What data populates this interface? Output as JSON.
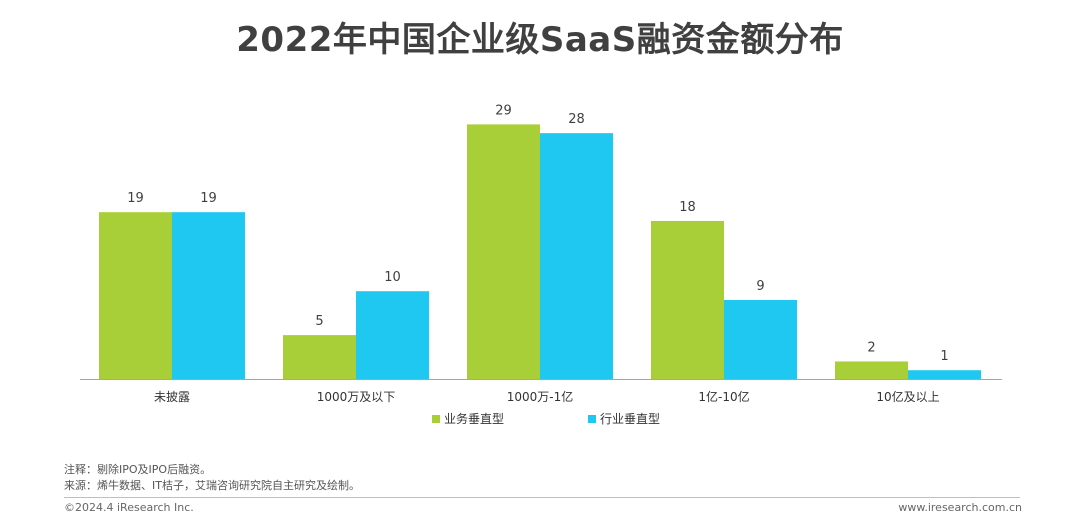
{
  "title": "2022年中国企业级SaaS融资金额分布",
  "chart_data": {
    "type": "bar",
    "title": "2022年中国企业级SaaS融资金额分布",
    "categories": [
      "未披露",
      "1000万及以下",
      "1000万-1亿",
      "1亿-10亿",
      "10亿及以上"
    ],
    "series": [
      {
        "name": "业务垂直型",
        "values": [
          19,
          5,
          29,
          18,
          2
        ],
        "color": "#a9cf38"
      },
      {
        "name": "行业垂直型",
        "values": [
          19,
          10,
          28,
          9,
          1
        ],
        "color": "#1ec8f0"
      }
    ],
    "xlabel": "",
    "ylabel": "",
    "ylim": [
      0,
      30
    ],
    "grid": false,
    "legend_position": "bottom"
  },
  "notes": {
    "note": "注释：剔除IPO及IPO后融资。",
    "source": "来源：烯牛数据、IT桔子，艾瑞咨询研究院自主研究及绘制。"
  },
  "footer": {
    "copyright": "©2024.4 iResearch Inc.",
    "website": "www.iresearch.com.cn"
  }
}
